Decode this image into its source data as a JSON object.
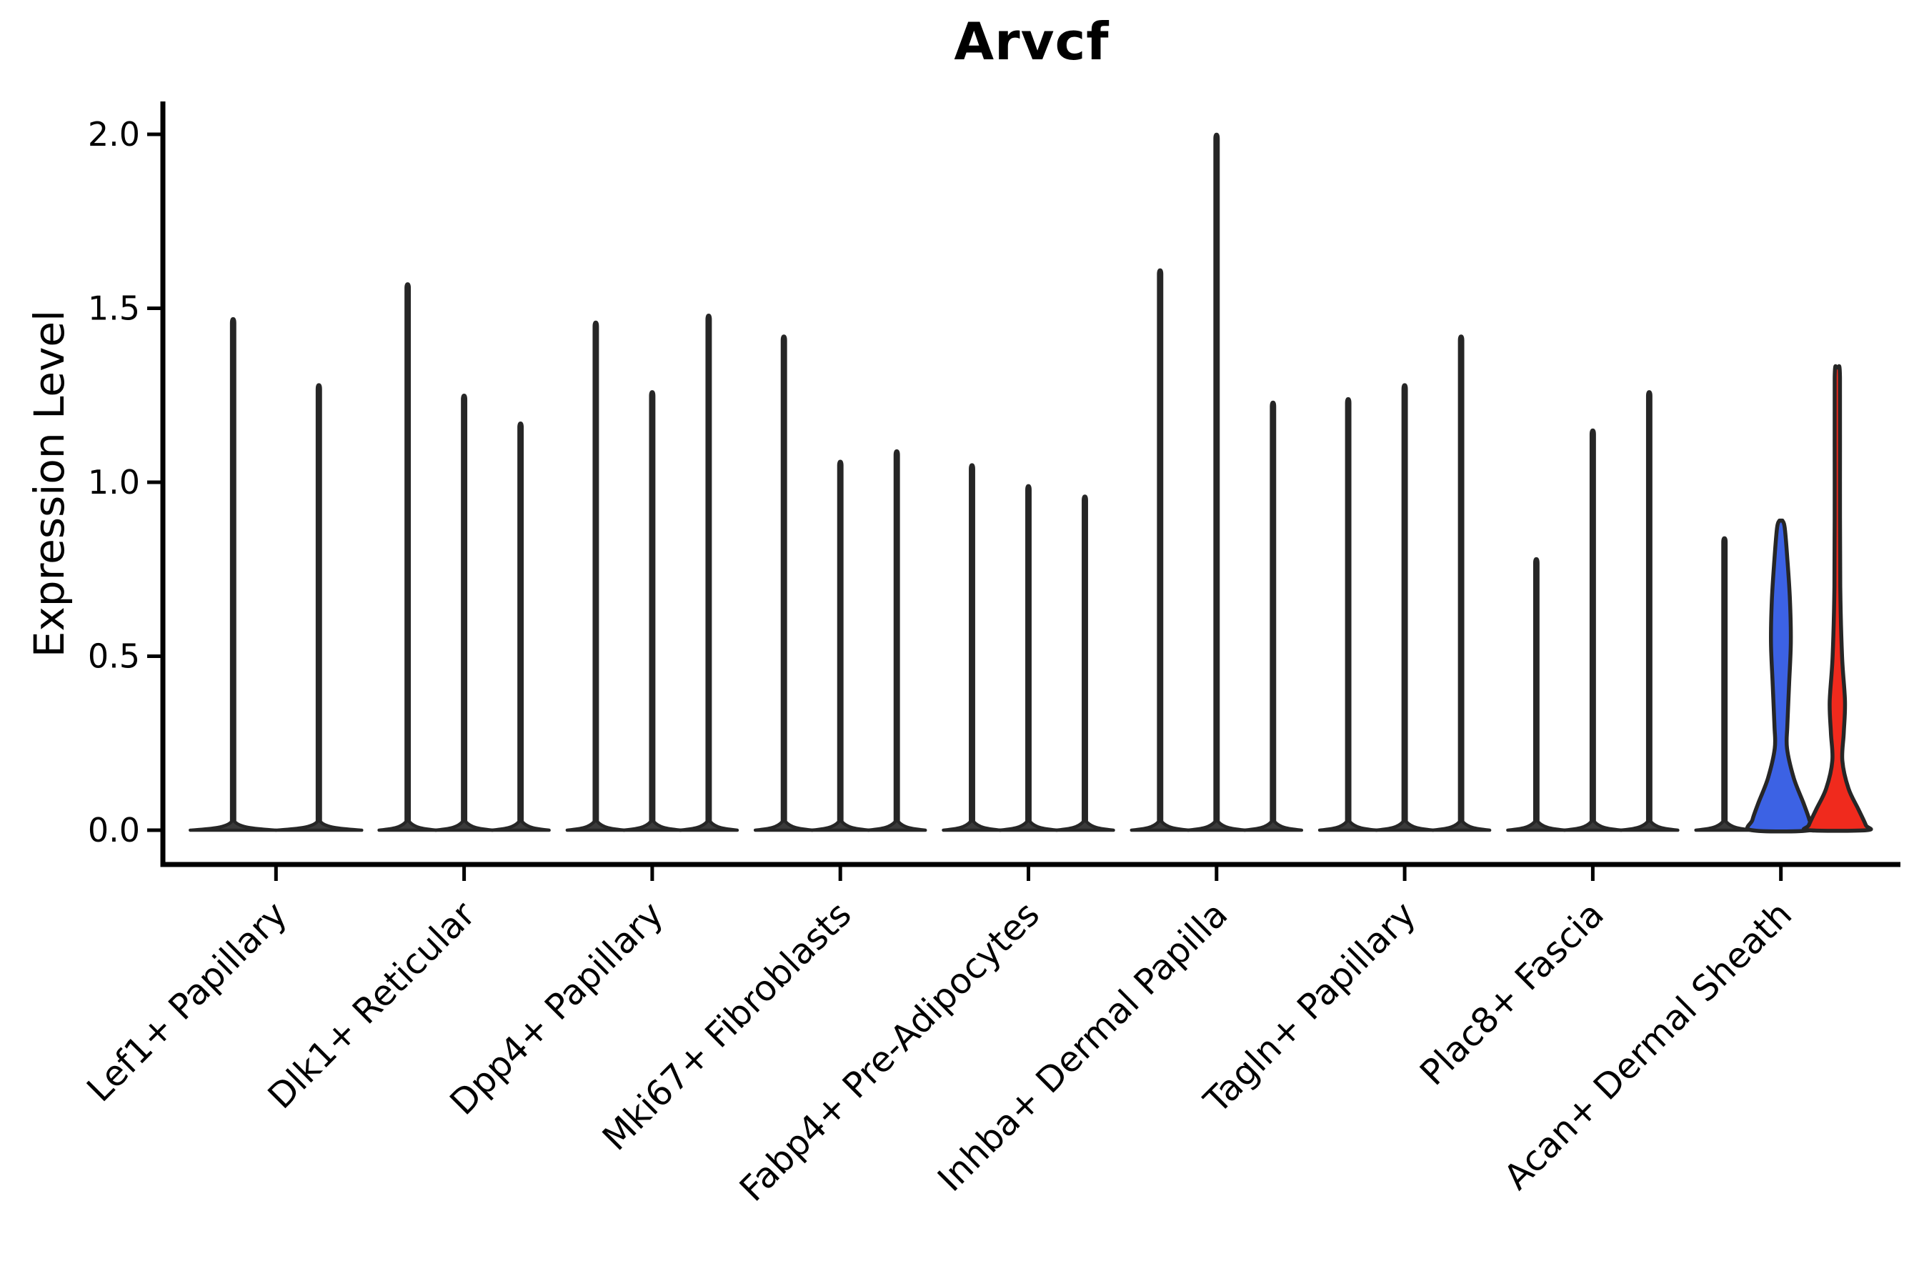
{
  "title": "Arvcf",
  "y_axis": {
    "label": "Expression Level",
    "tick_labels": [
      "0.0",
      "0.5",
      "1.0",
      "1.5",
      "2.0"
    ],
    "tick_values": [
      0.0,
      0.5,
      1.0,
      1.5,
      2.0
    ]
  },
  "colors": {
    "axis": "#000000",
    "violin_outline": "#262626",
    "violin_dark_fill": "#3b3b3b",
    "blue_violin": "#3c62e4",
    "red_violin": "#f02a1d"
  },
  "chart_data": {
    "type": "violin",
    "title": "Arvcf",
    "xlabel": "",
    "ylabel": "Expression Level",
    "ylim": [
      0,
      2.05
    ],
    "grid": false,
    "legend": "none",
    "categories": [
      "Lef1+ Papillary",
      "Dlk1+ Reticular",
      "Dpp4+ Papillary",
      "Mki67+ Fibroblasts",
      "Fabp4+ Pre-Adipocytes",
      "Inhba+ Dermal Papilla",
      "Tagln+ Papillary",
      "Plac8+ Fascia",
      "Acan+ Dermal Sheath"
    ],
    "groups": [
      {
        "label": "Lef1+ Papillary",
        "violins": [
          {
            "style": "dark",
            "max": 1.47
          },
          {
            "style": "dark",
            "max": 1.28
          }
        ]
      },
      {
        "label": "Dlk1+ Reticular",
        "violins": [
          {
            "style": "dark",
            "max": 1.57
          },
          {
            "style": "dark",
            "max": 1.25
          },
          {
            "style": "dark",
            "max": 1.17
          }
        ]
      },
      {
        "label": "Dpp4+ Papillary",
        "violins": [
          {
            "style": "dark",
            "max": 1.46
          },
          {
            "style": "dark",
            "max": 1.26
          },
          {
            "style": "dark",
            "max": 1.48
          }
        ]
      },
      {
        "label": "Mki67+ Fibroblasts",
        "violins": [
          {
            "style": "dark",
            "max": 1.42
          },
          {
            "style": "dark",
            "max": 1.06
          },
          {
            "style": "dark",
            "max": 1.09
          }
        ]
      },
      {
        "label": "Fabp4+ Pre-Adipocytes",
        "violins": [
          {
            "style": "dark",
            "max": 1.05
          },
          {
            "style": "dark",
            "max": 0.99
          },
          {
            "style": "dark",
            "max": 0.96
          }
        ]
      },
      {
        "label": "Inhba+ Dermal Papilla",
        "violins": [
          {
            "style": "dark",
            "max": 1.61
          },
          {
            "style": "dark",
            "max": 2.0
          },
          {
            "style": "dark",
            "max": 1.23
          }
        ]
      },
      {
        "label": "Tagln+ Papillary",
        "violins": [
          {
            "style": "dark",
            "max": 1.24
          },
          {
            "style": "dark",
            "max": 1.28
          },
          {
            "style": "dark",
            "max": 1.42
          }
        ]
      },
      {
        "label": "Plac8+ Fascia",
        "violins": [
          {
            "style": "dark",
            "max": 0.78
          },
          {
            "style": "dark",
            "max": 1.15
          },
          {
            "style": "dark",
            "max": 1.26
          }
        ]
      },
      {
        "label": "Acan+ Dermal Sheath",
        "violins": [
          {
            "style": "dark",
            "max": 0.84
          },
          {
            "style": "blue",
            "max": 0.89,
            "profile": [
              {
                "v": 0.89,
                "w": 0.05
              },
              {
                "v": 0.87,
                "w": 0.13
              },
              {
                "v": 0.78,
                "w": 0.22
              },
              {
                "v": 0.66,
                "w": 0.31
              },
              {
                "v": 0.54,
                "w": 0.34
              },
              {
                "v": 0.42,
                "w": 0.28
              },
              {
                "v": 0.3,
                "w": 0.22
              },
              {
                "v": 0.235,
                "w": 0.21
              },
              {
                "v": 0.15,
                "w": 0.44
              },
              {
                "v": 0.08,
                "w": 0.76
              },
              {
                "v": 0.03,
                "w": 0.97
              },
              {
                "v": 0.0,
                "w": 1.0
              }
            ]
          },
          {
            "style": "red",
            "max": 1.33,
            "profile": [
              {
                "v": 1.33,
                "w": 0.03
              },
              {
                "v": 1.3,
                "w": 0.09
              },
              {
                "v": 1.0,
                "w": 0.09
              },
              {
                "v": 0.7,
                "w": 0.1
              },
              {
                "v": 0.5,
                "w": 0.16
              },
              {
                "v": 0.37,
                "w": 0.26
              },
              {
                "v": 0.28,
                "w": 0.22
              },
              {
                "v": 0.2,
                "w": 0.17
              },
              {
                "v": 0.12,
                "w": 0.38
              },
              {
                "v": 0.06,
                "w": 0.72
              },
              {
                "v": 0.015,
                "w": 0.97
              },
              {
                "v": 0.0,
                "w": 1.0
              }
            ]
          }
        ]
      }
    ]
  }
}
